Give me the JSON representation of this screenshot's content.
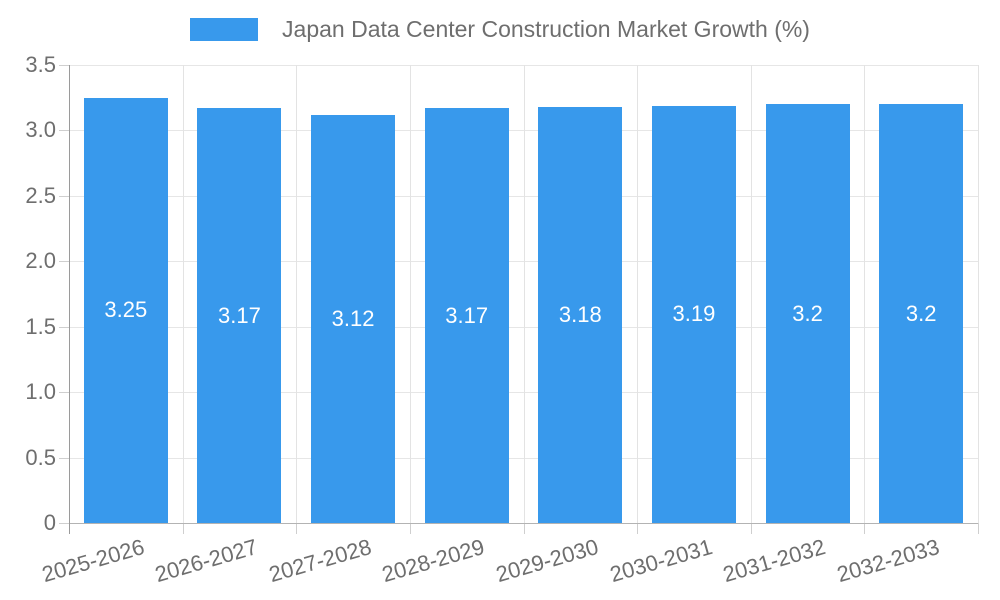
{
  "legend": {
    "label": "Japan Data Center Construction Market Growth (%)"
  },
  "colors": {
    "bar": "#3899EC",
    "grid": "#e6e6e6",
    "y_axis_line": "#9a9a9a",
    "x_axis_line": "#b3b3b3",
    "tick": "#cfcfcf",
    "text": "#6e6e6e",
    "value_label": "#ffffff"
  },
  "chart_data": {
    "type": "bar",
    "title": "Japan Data Center Construction Market Growth (%)",
    "categories": [
      "2025-2026",
      "2026-2027",
      "2027-2028",
      "2028-2029",
      "2029-2030",
      "2030-2031",
      "2031-2032",
      "2032-2033"
    ],
    "values": [
      3.25,
      3.17,
      3.12,
      3.17,
      3.18,
      3.19,
      3.2,
      3.2
    ],
    "value_labels": [
      "3.25",
      "3.17",
      "3.12",
      "3.17",
      "3.18",
      "3.19",
      "3.2",
      "3.2"
    ],
    "xlabel": "",
    "ylabel": "",
    "ylim": [
      0,
      3.5
    ],
    "ytick_step": 0.5,
    "ytick_labels": [
      "0",
      "0.5",
      "1.0",
      "1.5",
      "2.0",
      "2.5",
      "3.0",
      "3.5"
    ],
    "grid": true,
    "legend_position": "top",
    "bar_label_position": "center-of-bar"
  }
}
